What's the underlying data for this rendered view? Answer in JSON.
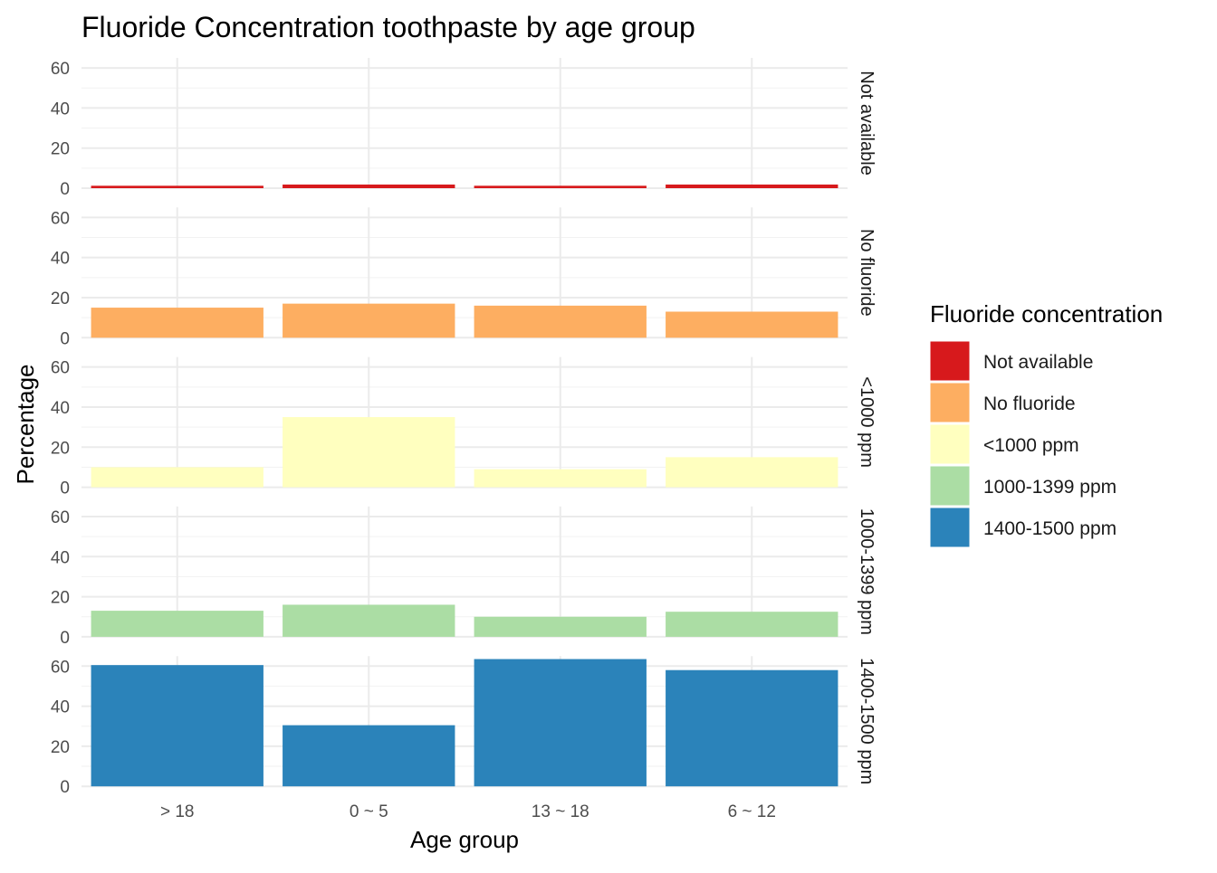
{
  "chart_data": {
    "type": "bar",
    "title": "Fluoride Concentration toothpaste by age group",
    "xlabel": "Age group",
    "ylabel": "Percentage",
    "categories": [
      "> 18",
      "0 ~ 5",
      "13 ~ 18",
      "6 ~ 12"
    ],
    "ylim": [
      0,
      65
    ],
    "yticks": [
      0,
      20,
      40,
      60
    ],
    "grid": true,
    "facet": "rows",
    "legend_title": "Fluoride concentration",
    "legend_position": "right",
    "series": [
      {
        "name": "Not available",
        "color": "#d7191c",
        "values": [
          1.2,
          1.8,
          1.2,
          1.8
        ]
      },
      {
        "name": "No fluoride",
        "color": "#fdae61",
        "values": [
          15,
          17,
          16,
          13
        ]
      },
      {
        "name": "<1000 ppm",
        "color": "#ffffbf",
        "values": [
          10,
          35,
          9,
          15
        ]
      },
      {
        "name": "1000-1399 ppm",
        "color": "#abdda4",
        "values": [
          13,
          16,
          10,
          12.5
        ]
      },
      {
        "name": "1400-1500 ppm",
        "color": "#2b83ba",
        "values": [
          60.5,
          30.5,
          63.5,
          58
        ]
      }
    ]
  }
}
